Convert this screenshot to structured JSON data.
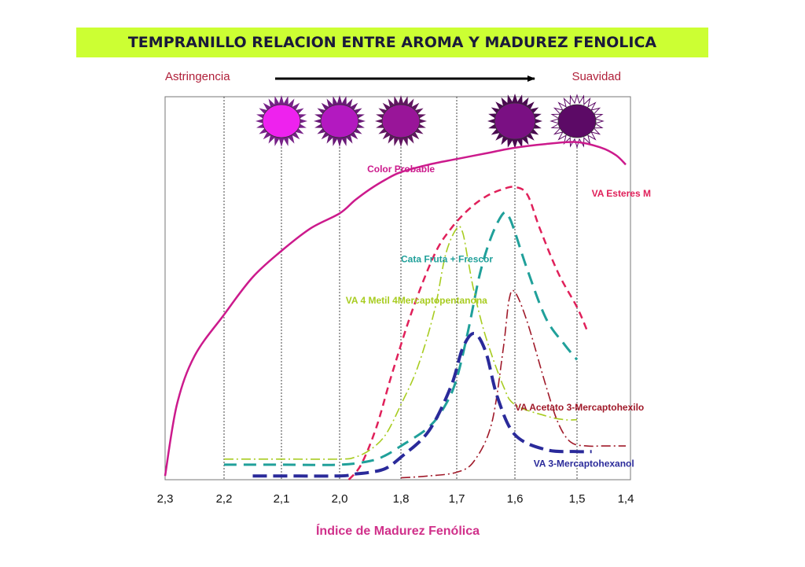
{
  "title": "TEMPRANILLO RELACION ENTRE  AROMA Y  MADUREZ FENOLICA",
  "colors": {
    "title_bg": "#ccff33",
    "title_text": "#1a1a3a",
    "astringencia_suavidad": "#b0203a",
    "xlabel": "#d0308a",
    "color_probable": "#cc1a8c",
    "esteres": "#e0205a",
    "cata": "#20a09a",
    "metil": "#a8cc20",
    "acetato": "#a01a2a",
    "mercaptohexanol": "#2a2a9a"
  },
  "annotations": {
    "left": "Astringencia",
    "right": "Suavidad",
    "arrow_icon": "right-arrow-icon"
  },
  "chart_data": {
    "type": "line",
    "title": "TEMPRANILLO RELACION ENTRE  AROMA Y  MADUREZ FENOLICA",
    "xlabel": "Índice de Madurez Fenólica",
    "ylabel": "",
    "x_reversed": true,
    "xlim": [
      2.3,
      1.4
    ],
    "ylim": [
      0,
      100
    ],
    "x_ticks": [
      2.3,
      2.2,
      2.1,
      2.0,
      1.8,
      1.7,
      1.6,
      1.5,
      1.4
    ],
    "x_tick_labels": [
      "2,3",
      "2,2",
      "2,1",
      "2,0",
      "1,8",
      "1,7",
      "1,6",
      "1,5",
      "1,4"
    ],
    "grid_x": [
      2.2,
      2.1,
      2.0,
      1.8,
      1.7,
      1.6,
      1.5
    ],
    "series": [
      {
        "name": "Color Probable",
        "style": "solid",
        "color": "#cc1a8c",
        "x": [
          2.3,
          2.28,
          2.25,
          2.2,
          2.15,
          2.1,
          2.05,
          2.0,
          1.95,
          1.9,
          1.85,
          1.8,
          1.75,
          1.7,
          1.65,
          1.6,
          1.55,
          1.5,
          1.45,
          1.42,
          1.4
        ],
        "y": [
          1,
          20,
          33,
          44,
          54,
          61,
          67,
          71,
          74.5,
          77.5,
          80,
          82,
          84,
          85.5,
          87,
          88.5,
          89.5,
          90,
          88.5,
          86.5,
          84
        ]
      },
      {
        "name": "VA Esteres M",
        "style": "dash",
        "color": "#e0205a",
        "x": [
          1.97,
          1.93,
          1.88,
          1.83,
          1.78,
          1.74,
          1.71,
          1.68,
          1.65,
          1.62,
          1.6,
          1.58,
          1.56,
          1.53,
          1.5,
          1.48
        ],
        "y": [
          0,
          4,
          14,
          28,
          45,
          60,
          67,
          72,
          75.5,
          77.5,
          78,
          76,
          67,
          55,
          46,
          40
        ]
      },
      {
        "name": "Cata Fruta + Frescor",
        "style": "longdash",
        "color": "#20a09a",
        "x": [
          2.2,
          2.1,
          2.0,
          1.9,
          1.85,
          1.8,
          1.75,
          1.72,
          1.7,
          1.68,
          1.66,
          1.64,
          1.62,
          1.61,
          1.6,
          1.58,
          1.55,
          1.52,
          1.5
        ],
        "y": [
          4,
          4,
          4,
          5,
          6.5,
          9,
          14,
          20,
          27,
          40,
          55,
          65,
          71,
          70,
          66,
          56,
          43,
          36,
          32
        ]
      },
      {
        "name": "VA 4 Metil 4Mercaptopentanona",
        "style": "dashdot",
        "color": "#a8cc20",
        "x": [
          2.2,
          2.1,
          2.0,
          1.95,
          1.9,
          1.85,
          1.8,
          1.77,
          1.74,
          1.72,
          1.7,
          1.69,
          1.68,
          1.67,
          1.65,
          1.62,
          1.6,
          1.55,
          1.52,
          1.5
        ],
        "y": [
          5.5,
          5.5,
          5.5,
          6,
          8,
          12,
          20,
          30,
          45,
          60,
          67,
          66,
          58,
          50,
          38,
          25,
          20,
          17,
          16,
          16
        ]
      },
      {
        "name": "VA Acetato 3-Mercaptohexilo",
        "style": "dashdot",
        "color": "#a01a2a",
        "x": [
          1.8,
          1.75,
          1.7,
          1.67,
          1.64,
          1.62,
          1.61,
          1.6,
          1.58,
          1.55,
          1.53,
          1.51,
          1.48,
          1.45,
          1.42,
          1.4
        ],
        "y": [
          0.5,
          1,
          2,
          5,
          15,
          35,
          48,
          50,
          42,
          25,
          15,
          10,
          9,
          9,
          9,
          9
        ]
      },
      {
        "name": "VA 3-Mercaptohexanol",
        "style": "heavydash",
        "color": "#2a2a9a",
        "x": [
          2.15,
          2.1,
          2.0,
          1.95,
          1.9,
          1.85,
          1.8,
          1.75,
          1.71,
          1.69,
          1.67,
          1.65,
          1.63,
          1.6,
          1.55,
          1.5,
          1.47
        ],
        "y": [
          1,
          1,
          1,
          1.5,
          2,
          3,
          6,
          13,
          25,
          35,
          39,
          34,
          22,
          12,
          8,
          7.5,
          7.5
        ]
      }
    ],
    "data_labels": [
      {
        "text": "Color Probable",
        "x": 1.91,
        "y": 82,
        "color": "#cc1a8c"
      },
      {
        "text": "VA Esteres M",
        "x": 1.47,
        "y": 75.5,
        "color": "#e0205a"
      },
      {
        "text": "Cata Fruta + Frescor",
        "x": 1.8,
        "y": 58,
        "color": "#20a09a"
      },
      {
        "text": "VA 4 Metil 4Mercaptopentanona",
        "x": 1.98,
        "y": 47,
        "color": "#a8cc20"
      },
      {
        "text": "VA Acetato 3-Mercaptohexilo",
        "x": 1.6,
        "y": 18.5,
        "color": "#a01a2a"
      },
      {
        "text": "VA 3-Mercaptohexanol",
        "x": 1.57,
        "y": 3.5,
        "color": "#2a2a9a"
      }
    ],
    "color_swatches": [
      {
        "x": 2.1,
        "fill": "#ee22ee",
        "size": "medium",
        "ray": "#772288"
      },
      {
        "x": 2.0,
        "fill": "#b319c0",
        "size": "medium",
        "ray": "#6a1a78"
      },
      {
        "x": 1.8,
        "fill": "#991599",
        "size": "medium",
        "ray": "#601560"
      },
      {
        "x": 1.6,
        "fill": "#7a1083",
        "size": "large",
        "ray": "#4a0a50"
      },
      {
        "x": 1.5,
        "fill": "#5c0a66",
        "size": "medium",
        "ray": "#ffffff"
      }
    ]
  }
}
